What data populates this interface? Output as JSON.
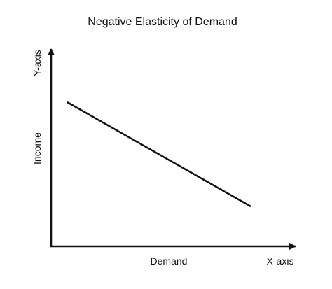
{
  "title": "Negative Elasticity of Demand",
  "y_axis": {
    "end_label": "Y-axis",
    "quantity_label": "Income"
  },
  "x_axis": {
    "end_label": "X-axis",
    "quantity_label": "Demand"
  },
  "colors": {
    "line": "#111111",
    "background": "#ffffff"
  },
  "chart_data": {
    "type": "line",
    "title": "Negative Elasticity of Demand",
    "xlabel": "Demand",
    "ylabel": "Income",
    "grid": false,
    "legend": "none",
    "series": [
      {
        "shape": "downward-sloping straight line"
      }
    ]
  }
}
